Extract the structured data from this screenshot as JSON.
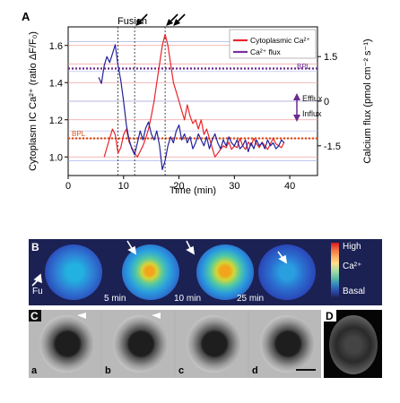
{
  "panel_a": {
    "label": "A",
    "fusion_label": "Fusion",
    "ylabel_left": "Cytoplasm IC Ca²⁺ (ratio ΔF/F₀)",
    "ylabel_right": "Calcium flux (pmol cm⁻² s⁻¹)",
    "xlabel": "Time (min)",
    "bpl_flux_label": "BPL",
    "bpl_ca_label": "BPL",
    "efflux_label": "Efflux",
    "influx_label": "Influx"
  },
  "panel_b": {
    "label": "B",
    "fu_label": "Fu",
    "time_labels": [
      "5 min",
      "10 min",
      "25 min"
    ],
    "colorbar_high": "High",
    "colorbar_mid": "Ca²⁺",
    "colorbar_low": "Basal"
  },
  "panel_c": {
    "label": "C",
    "frames": [
      "a",
      "b",
      "c",
      "d"
    ]
  },
  "panel_d": {
    "label": "D"
  },
  "colors": {
    "cytoplasmic": "#e8252a",
    "flux": "#23219a",
    "flux_legend": "#7b2e9e",
    "bpl_ca": "#d9541c",
    "bpl_flux": "#6a2a8e"
  },
  "chart_data": {
    "type": "line",
    "xlabel": "Time (min)",
    "ylabel": "Cytoplasm IC Ca²⁺ (ratio ΔF/F₀)",
    "ylabel_right": "Calcium flux (pmol cm⁻² s⁻¹)",
    "xlim": [
      0,
      45
    ],
    "ylim": [
      0.9,
      1.7
    ],
    "ylim_right": [
      -2.5,
      2.5
    ],
    "x_ticks": [
      0,
      10,
      20,
      30,
      40
    ],
    "y_ticks": [
      1.0,
      1.2,
      1.4,
      1.6
    ],
    "y_right_ticks": [
      -1.5,
      0,
      1.5
    ],
    "fusion_time": 9,
    "arrow_times": [
      12,
      17.5
    ],
    "series": [
      {
        "name": "Cytoplasmic Ca²⁺",
        "axis": "left",
        "x": [
          6.5,
          7,
          7.5,
          8,
          8.5,
          9,
          9.5,
          10,
          10.5,
          11,
          11.5,
          12,
          12.5,
          13,
          13.5,
          14,
          14.5,
          15,
          15.5,
          16,
          16.5,
          17,
          17.5,
          18,
          18.5,
          19,
          19.5,
          20,
          20.5,
          21,
          21.5,
          22,
          22.5,
          23,
          23.5,
          24,
          24.5,
          25,
          25.5,
          26,
          26.5,
          27,
          27.5,
          28,
          28.5,
          29,
          29.5,
          30,
          30.5,
          31,
          31.5,
          32,
          32.5,
          33,
          33.5,
          34,
          34.5,
          35,
          35.5,
          36,
          36.5,
          37,
          37.5,
          38,
          38.5,
          39
        ],
        "y": [
          1.0,
          1.05,
          1.1,
          1.15,
          1.12,
          1.02,
          1.05,
          1.12,
          1.15,
          1.08,
          1.05,
          1.02,
          1.0,
          1.03,
          1.06,
          1.1,
          1.15,
          1.22,
          1.3,
          1.4,
          1.5,
          1.6,
          1.66,
          1.6,
          1.5,
          1.4,
          1.35,
          1.3,
          1.25,
          1.2,
          1.28,
          1.22,
          1.18,
          1.2,
          1.15,
          1.2,
          1.12,
          1.15,
          1.1,
          1.05,
          1.0,
          1.02,
          1.04,
          1.06,
          1.05,
          1.08,
          1.04,
          1.06,
          1.05,
          1.1,
          1.06,
          1.04,
          1.08,
          1.06,
          1.1,
          1.07,
          1.05,
          1.08,
          1.06,
          1.04,
          1.07,
          1.1,
          1.07,
          1.06,
          1.05,
          1.08
        ]
      },
      {
        "name": "Ca²⁺ flux",
        "axis": "right",
        "x": [
          5.5,
          6,
          6.5,
          7,
          7.5,
          8,
          8.5,
          9,
          9.5,
          10,
          10.5,
          11,
          11.5,
          12,
          12.5,
          13,
          13.5,
          14,
          14.5,
          15,
          15.5,
          16,
          16.5,
          17,
          17.5,
          18,
          18.5,
          19,
          19.5,
          20,
          20.5,
          21,
          21.5,
          22,
          22.5,
          23,
          23.5,
          24,
          24.5,
          25,
          25.5,
          26,
          26.5,
          27,
          27.5,
          28,
          28.5,
          29,
          29.5,
          30,
          30.5,
          31,
          31.5,
          32,
          32.5,
          33,
          33.5,
          34,
          34.5,
          35,
          35.5,
          36,
          36.5,
          37,
          37.5,
          38,
          38.5,
          39
        ],
        "y": [
          0.8,
          0.6,
          1.2,
          1.5,
          1.3,
          1.6,
          1.9,
          1.2,
          0.7,
          0.0,
          -0.8,
          -1.3,
          -1.6,
          -1.8,
          -1.4,
          -1.0,
          -1.3,
          -0.9,
          -0.7,
          -1.1,
          -1.3,
          -1.0,
          -1.5,
          -2.3,
          -2.0,
          -1.5,
          -1.2,
          -1.4,
          -1.0,
          -0.8,
          -1.3,
          -1.1,
          -1.4,
          -1.2,
          -1.6,
          -1.4,
          -1.1,
          -1.3,
          -1.5,
          -1.2,
          -1.6,
          -1.3,
          -1.1,
          -1.4,
          -1.6,
          -1.3,
          -1.5,
          -1.2,
          -1.4,
          -1.5,
          -1.3,
          -1.6,
          -1.5,
          -1.3,
          -1.7,
          -1.4,
          -1.6,
          -1.3,
          -1.5,
          -1.4,
          -1.6,
          -1.3,
          -1.5,
          -1.4,
          -1.6,
          -1.5,
          -1.3,
          -1.4
        ]
      }
    ],
    "reference_lines": [
      {
        "name": "BPL",
        "axis": "right",
        "value": 1.1,
        "style": "dotted"
      },
      {
        "name": "BPL",
        "axis": "left",
        "value": 1.1,
        "style": "dotted"
      }
    ],
    "legend": "top-right"
  }
}
